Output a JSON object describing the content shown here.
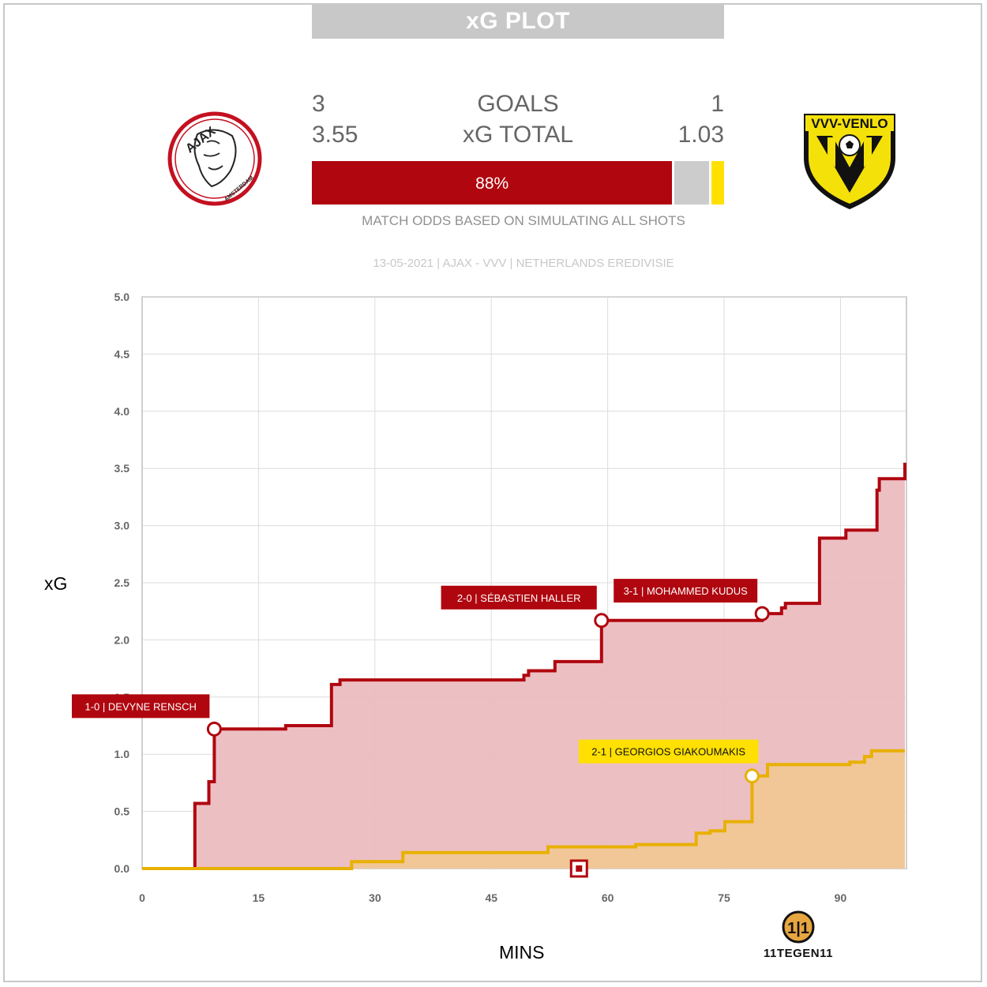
{
  "title": "xG PLOT",
  "scoreboard": {
    "goals_label": "GOALS",
    "xg_label": "xG TOTAL",
    "home_goals": "3",
    "away_goals": "1",
    "home_xg": "3.55",
    "away_xg": "1.03"
  },
  "odds": {
    "home_win_pct": 88,
    "draw_pct": 9,
    "away_win_pct": 3,
    "home_label": "88%",
    "caption": "MATCH ODDS BASED ON SIMULATING ALL SHOTS"
  },
  "match_info": "13-05-2021 | AJAX - VVV | NETHERLANDS EREDIVISIE",
  "home_crest": {
    "text": "AJAX",
    "subtext": "AMSTERDAM"
  },
  "away_crest": {
    "text": "VVV-VENLO"
  },
  "brand": {
    "text": "11TEGEN11"
  },
  "colors": {
    "home": "#b0060f",
    "home_fill": "#ebbcc0",
    "away": "#e8b000",
    "away_fill": "#f2c890",
    "away_label": "#ffe000",
    "draw": "#cccccc"
  },
  "chart_data": {
    "type": "line",
    "xlabel": "MINS",
    "ylabel": "xG",
    "xlim": [
      0,
      98.5
    ],
    "ylim": [
      0,
      5.0
    ],
    "x_ticks": [
      0,
      15,
      30,
      45,
      60,
      75,
      90
    ],
    "y_ticks": [
      0.0,
      0.5,
      1.0,
      1.5,
      2.0,
      2.5,
      3.0,
      3.5,
      4.0,
      4.5,
      5.0
    ],
    "grid": true,
    "series": [
      {
        "team": "home",
        "step_points": [
          [
            0,
            0
          ],
          [
            6.8,
            0
          ],
          [
            6.8,
            0.57
          ],
          [
            8.6,
            0.57
          ],
          [
            8.6,
            0.76
          ],
          [
            9.3,
            0.76
          ],
          [
            9.3,
            1.22
          ],
          [
            18.5,
            1.22
          ],
          [
            18.5,
            1.25
          ],
          [
            24.4,
            1.25
          ],
          [
            24.4,
            1.61
          ],
          [
            25.5,
            1.61
          ],
          [
            25.5,
            1.65
          ],
          [
            49.2,
            1.65
          ],
          [
            49.2,
            1.69
          ],
          [
            49.8,
            1.69
          ],
          [
            49.8,
            1.73
          ],
          [
            53.2,
            1.73
          ],
          [
            53.2,
            1.81
          ],
          [
            59.2,
            1.81
          ],
          [
            59.2,
            2.17
          ],
          [
            79.9,
            2.17
          ],
          [
            79.9,
            2.23
          ],
          [
            82.4,
            2.23
          ],
          [
            82.4,
            2.28
          ],
          [
            82.9,
            2.28
          ],
          [
            82.9,
            2.32
          ],
          [
            87.3,
            2.32
          ],
          [
            87.3,
            2.89
          ],
          [
            90.7,
            2.89
          ],
          [
            90.7,
            2.96
          ],
          [
            94.7,
            2.96
          ],
          [
            94.7,
            3.31
          ],
          [
            95.0,
            3.31
          ],
          [
            95.0,
            3.41
          ],
          [
            98.3,
            3.41
          ],
          [
            98.3,
            3.55
          ]
        ]
      },
      {
        "team": "away",
        "step_points": [
          [
            0,
            0
          ],
          [
            27.0,
            0
          ],
          [
            27.0,
            0.06
          ],
          [
            33.6,
            0.06
          ],
          [
            33.6,
            0.14
          ],
          [
            52.3,
            0.14
          ],
          [
            52.3,
            0.19
          ],
          [
            63.6,
            0.19
          ],
          [
            63.6,
            0.21
          ],
          [
            71.4,
            0.21
          ],
          [
            71.4,
            0.31
          ],
          [
            73.2,
            0.31
          ],
          [
            73.2,
            0.33
          ],
          [
            75.1,
            0.33
          ],
          [
            75.1,
            0.41
          ],
          [
            78.6,
            0.41
          ],
          [
            78.6,
            0.81
          ],
          [
            80.6,
            0.81
          ],
          [
            80.6,
            0.91
          ],
          [
            91.2,
            0.91
          ],
          [
            91.2,
            0.93
          ],
          [
            93.1,
            0.93
          ],
          [
            93.1,
            0.98
          ],
          [
            94.0,
            0.98
          ],
          [
            94.0,
            1.03
          ],
          [
            98.3,
            1.03
          ]
        ]
      }
    ],
    "goals": [
      {
        "team": "home",
        "minute": 9.3,
        "xg": 1.22,
        "label": "1-0 | DEVYNE RENSCH"
      },
      {
        "team": "home",
        "minute": 59.2,
        "xg": 2.17,
        "label": "2-0 | SÉBASTIEN HALLER"
      },
      {
        "team": "away",
        "minute": 78.6,
        "xg": 0.81,
        "label": "2-1 | GEORGIOS GIAKOUMAKIS"
      },
      {
        "team": "home",
        "minute": 79.9,
        "xg": 2.23,
        "label": "3-1 | MOHAMMED KUDUS"
      }
    ],
    "red_cards": [
      {
        "team": "home",
        "minute": 56.3
      }
    ]
  }
}
